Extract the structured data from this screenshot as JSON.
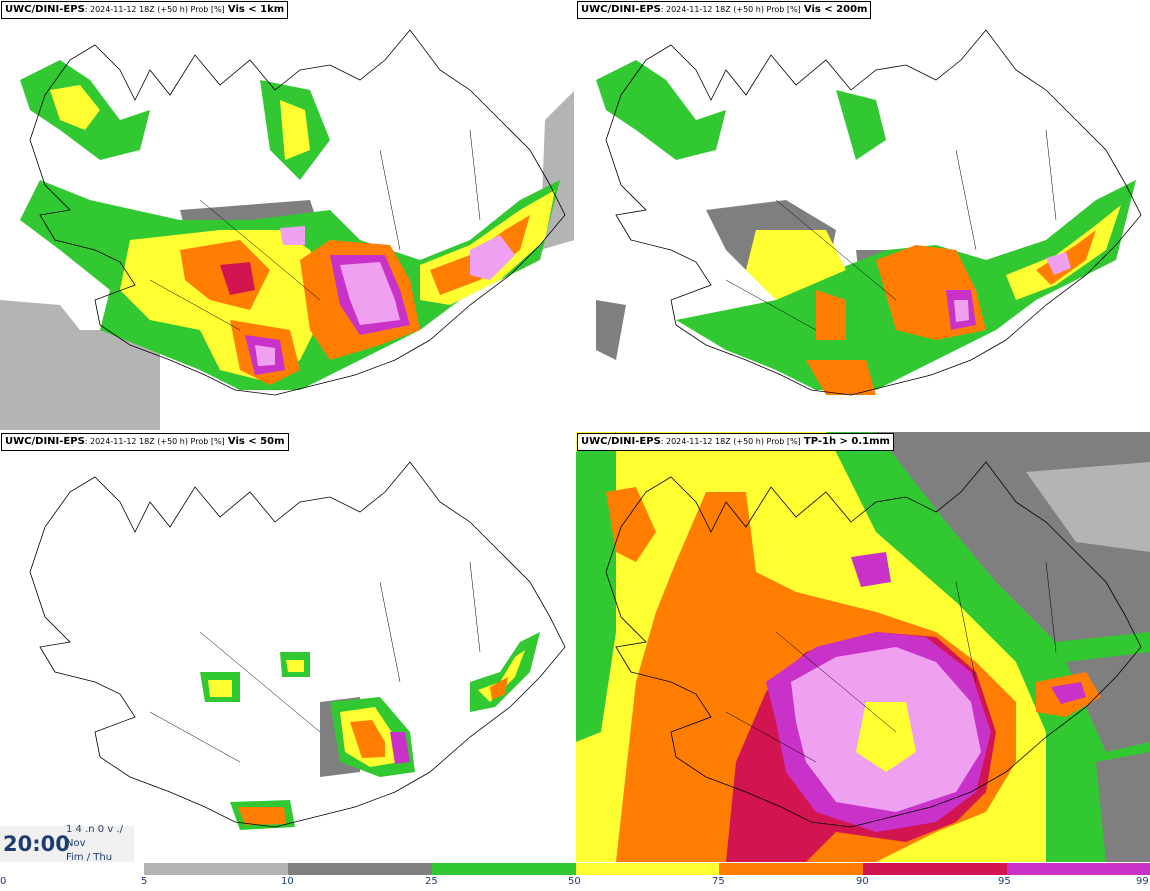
{
  "panels": [
    {
      "model": "UWC/DINI-EPS",
      "meta": ": 2024-11-12 18Z (+50 h) Prob [%]",
      "param": "Vis < 1km"
    },
    {
      "model": "UWC/DINI-EPS",
      "meta": ": 2024-11-12 18Z (+50 h) Prob [%]",
      "param": "Vis < 200m"
    },
    {
      "model": "UWC/DINI-EPS",
      "meta": ": 2024-11-12 18Z (+50 h) Prob [%]",
      "param": "Vis < 50m"
    },
    {
      "model": "UWC/DINI-EPS",
      "meta": ": 2024-11-12 18Z (+50 h) Prob [%]",
      "param": "TP-1h > 0.1mm"
    }
  ],
  "valid_time": {
    "clock": "20:00",
    "line1": "1 4 .n 0 v ./",
    "line2": "Nov",
    "line3": "Fim / Thu"
  },
  "legend": {
    "labels": [
      "0",
      "5",
      "10",
      "25",
      "50",
      "75",
      "90",
      "95",
      "99"
    ],
    "colors": {
      "p5": "#b4b4b4",
      "p10": "#7f7f7f",
      "p25": "#32c832",
      "p50": "#ffff32",
      "p75": "#ff7d00",
      "p90": "#d21450",
      "p95": "#c832c8",
      "p99": "#f0a0f0"
    }
  }
}
